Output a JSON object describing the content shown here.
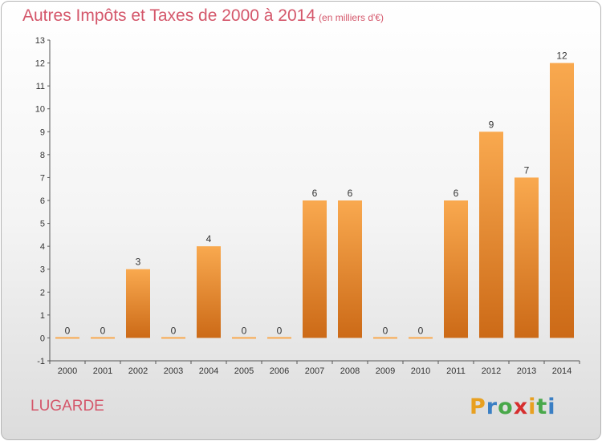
{
  "title": "Autres Impôts et Taxes de 2000 à 2014",
  "subtitle": "(en milliers d'€)",
  "commune": "LUGARDE",
  "logo": {
    "letters": [
      "P",
      "r",
      "o",
      "x",
      "i",
      "t",
      "i"
    ],
    "colors": [
      "#e8a020",
      "#3a7fc4",
      "#49a84a",
      "#d62e2e",
      "#e8a020",
      "#49a84a",
      "#3a7fc4"
    ]
  },
  "colors": {
    "bar_light": "#f9a94f",
    "bar_dark": "#cc6a17",
    "title": "#d4566a",
    "axis": "#555555"
  },
  "chart_data": {
    "type": "bar",
    "categories": [
      "2000",
      "2001",
      "2002",
      "2003",
      "2004",
      "2005",
      "2006",
      "2007",
      "2008",
      "2009",
      "2010",
      "2011",
      "2012",
      "2013",
      "2014"
    ],
    "values": [
      0,
      0,
      3,
      0,
      4,
      0,
      0,
      6,
      6,
      0,
      0,
      6,
      9,
      7,
      12
    ],
    "y_ticks": [
      "-1",
      "0",
      "1",
      "2",
      "3",
      "4",
      "5",
      "6",
      "7",
      "8",
      "9",
      "10",
      "11",
      "12",
      "13"
    ],
    "ylim": [
      -1,
      13
    ],
    "title": "Autres Impôts et Taxes de 2000 à 2014",
    "xlabel": "",
    "ylabel": "",
    "grid": false,
    "legend": "none"
  }
}
